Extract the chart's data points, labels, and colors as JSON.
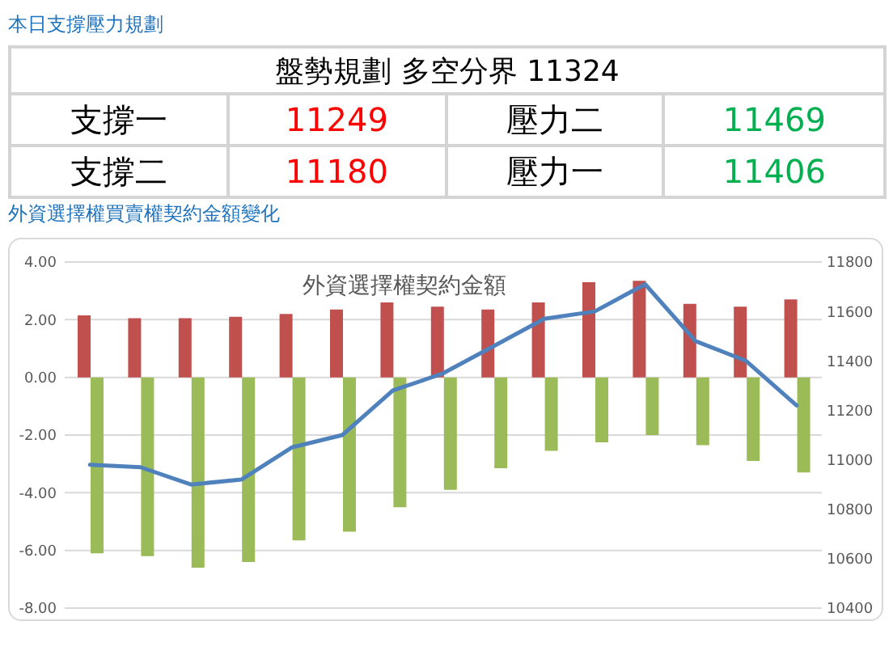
{
  "chart_data": [
    {
      "type": "other",
      "title": "本日支撐壓力規劃",
      "subtitle": "盤勢規劃 多空分界 11324",
      "categories": [
        "支撐一",
        "壓力二",
        "支撐二",
        "壓力一"
      ],
      "series": [
        {
          "color": "#ff0000",
          "values": [
            11249,
            null,
            11180,
            null
          ]
        },
        {
          "color": "#00b050",
          "values": [
            null,
            11469,
            null,
            11406
          ]
        }
      ],
      "data_labels": true
    },
    {
      "type": "bar",
      "title": "外資選擇權買賣權契約金額變化",
      "subtitle": "外資選擇權契約金額",
      "categories": [
        null,
        null,
        null,
        null,
        null,
        null,
        null,
        null,
        null,
        null,
        null,
        null,
        null,
        null,
        null
      ],
      "series": [
        {
          "color": "#c0504d",
          "values": [
            2.15,
            2.05,
            2.05,
            2.1,
            2.2,
            2.35,
            2.6,
            2.45,
            2.35,
            2.6,
            3.3,
            3.35,
            2.55,
            2.45,
            2.7
          ]
        },
        {
          "color": "#9bbb59",
          "values": [
            -6.1,
            -6.2,
            -6.6,
            -6.4,
            -5.65,
            -5.35,
            -4.5,
            -3.9,
            -3.15,
            -2.55,
            -2.25,
            -2.0,
            -2.35,
            -2.9,
            -3.3
          ]
        },
        {
          "type": "line",
          "axis": "y2",
          "color": "#4f81bd",
          "values": [
            10980,
            10970,
            10900,
            10920,
            11050,
            11100,
            11280,
            11350,
            11460,
            11570,
            11600,
            11710,
            11480,
            11400,
            11220
          ]
        }
      ],
      "ylim": [
        -8,
        4
      ],
      "yticks": [
        {
          "value": -8,
          "label": "-8.00"
        },
        {
          "value": -6,
          "label": "-6.00"
        },
        {
          "value": -4,
          "label": "-4.00"
        },
        {
          "value": -2,
          "label": "-2.00"
        },
        {
          "value": 0,
          "label": "0.00"
        },
        {
          "value": 2,
          "label": "2.00"
        },
        {
          "value": 4,
          "label": "4.00"
        }
      ],
      "y2lim": [
        10400,
        11800
      ],
      "y2ticks": [
        10400,
        10600,
        10800,
        11000,
        11200,
        11400,
        11600,
        11800
      ],
      "grid": "y",
      "legend": false,
      "marker": "none",
      "line_style": "solid"
    }
  ]
}
